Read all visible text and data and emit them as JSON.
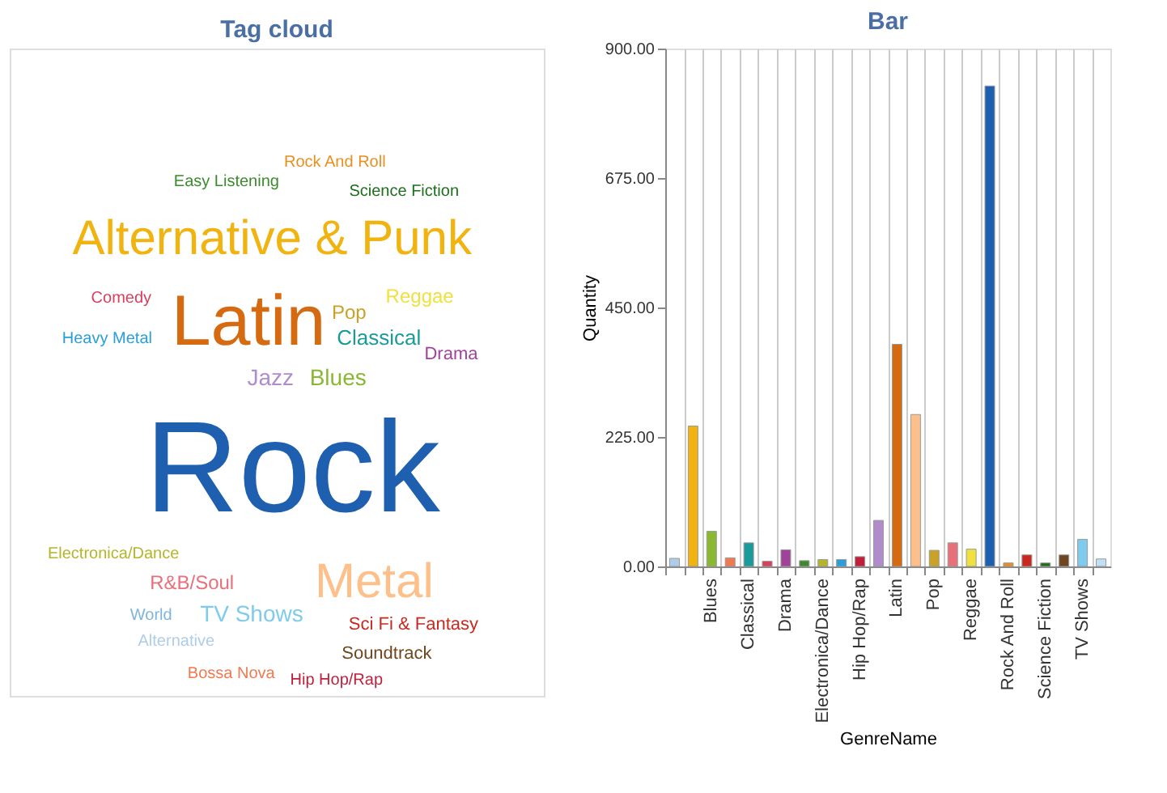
{
  "chart_data": [
    {
      "type": "other",
      "title": "Tag cloud",
      "categories": [
        "Alternative",
        "Alternative & Punk",
        "Blues",
        "Bossa Nova",
        "Classical",
        "Comedy",
        "Drama",
        "Easy Listening",
        "Electronica/Dance",
        "Heavy Metal",
        "Hip Hop/Rap",
        "Jazz",
        "Latin",
        "Metal",
        "Pop",
        "R&B/Soul",
        "Reggae",
        "Rock",
        "Rock And Roll",
        "Sci Fi & Fantasy",
        "Science Fiction",
        "Soundtrack",
        "TV Shows",
        "World"
      ],
      "colors": [
        "#aecde8",
        "#f0b30f",
        "#8ab833",
        "#f07a50",
        "#1a9a9a",
        "#d8405c",
        "#a0429a",
        "#3d8a2e",
        "#b5b52a",
        "#2a9ed8",
        "#c01f3a",
        "#b08ccc",
        "#d66a10",
        "#fdc08a",
        "#c9a227",
        "#e8707a",
        "#f0e040",
        "#1f5fb0",
        "#e8901f",
        "#c8281e",
        "#1c6e1c",
        "#6e4620",
        "#7ecbee",
        "#7fb5dc"
      ]
    },
    {
      "type": "bar",
      "title": "Bar",
      "xlabel": "GenreName",
      "ylabel": "Quantity",
      "categories": [
        null,
        null,
        "Blues",
        null,
        "Classical",
        null,
        "Drama",
        null,
        "Electronica/Dance",
        null,
        "Hip Hop/Rap",
        null,
        "Latin",
        null,
        "Pop",
        null,
        "Reggae",
        null,
        "Rock And Roll",
        null,
        "Science Fiction",
        null,
        "TV Shows",
        null
      ],
      "values": [
        14,
        244,
        61,
        15,
        41,
        9,
        29,
        10,
        12,
        12,
        17,
        80,
        386,
        264,
        28,
        41,
        30,
        835,
        6,
        20,
        6,
        20,
        47,
        13
      ],
      "colors": [
        "#aecde8",
        "#f0b30f",
        "#8ab833",
        "#f07a50",
        "#1a9a9a",
        "#d8405c",
        "#a0429a",
        "#3d8a2e",
        "#b5b52a",
        "#2a9ed8",
        "#c01f3a",
        "#b08ccc",
        "#d66a10",
        "#fdc08a",
        "#c9a227",
        "#e8707a",
        "#f0e040",
        "#1f5fb0",
        "#e8901f",
        "#c8281e",
        "#1c6e1c",
        "#6e4620",
        "#7ecbee",
        "#c2e0f5"
      ],
      "ylim": [
        0,
        900
      ],
      "yticks": [
        {
          "value": 0,
          "label": "0.00"
        },
        {
          "value": 225,
          "label": "225.00"
        },
        {
          "value": 450,
          "label": "450.00"
        },
        {
          "value": 675,
          "label": "675.00"
        },
        {
          "value": 900,
          "label": "900.00"
        }
      ],
      "grid": "x"
    }
  ]
}
